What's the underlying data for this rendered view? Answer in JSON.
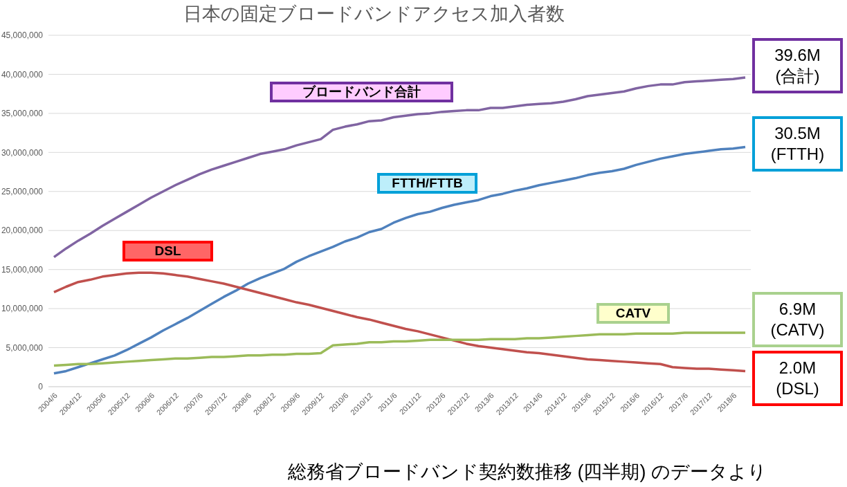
{
  "chart_data": {
    "type": "line",
    "title": "日本の固定ブロードバンドアクセス加入者数",
    "categories": [
      "2004/6",
      null,
      "2004/12",
      null,
      "2005/6",
      null,
      "2005/12",
      null,
      "2006/6",
      null,
      "2006/12",
      null,
      "2007/6",
      null,
      "2007/12",
      null,
      "2008/6",
      null,
      "2008/12",
      null,
      "2009/6",
      null,
      "2009/12",
      null,
      "2010/6",
      null,
      "2010/12",
      null,
      "2011/6",
      null,
      "2011/12",
      null,
      "2012/6",
      null,
      "2012/12",
      null,
      "2013/6",
      null,
      "2013/12",
      null,
      "2014/6",
      null,
      "2014/12",
      null,
      "2015/6",
      null,
      "2015/12",
      null,
      "2016/6",
      null,
      "2016/12",
      null,
      "2017/6",
      null,
      "2017/12",
      null,
      "2018/6",
      null
    ],
    "series": [
      {
        "name": "ブロードバンド合計",
        "color": "#8064a2",
        "values": [
          16600000,
          17700000,
          18700000,
          19600000,
          20600000,
          21500000,
          22400000,
          23300000,
          24200000,
          25000000,
          25800000,
          26500000,
          27200000,
          27800000,
          28300000,
          28800000,
          29300000,
          29800000,
          30100000,
          30400000,
          30900000,
          31300000,
          31700000,
          32900000,
          33300000,
          33600000,
          34000000,
          34100000,
          34500000,
          34700000,
          34900000,
          35000000,
          35200000,
          35300000,
          35400000,
          35400000,
          35700000,
          35700000,
          35900000,
          36100000,
          36200000,
          36300000,
          36500000,
          36800000,
          37200000,
          37400000,
          37600000,
          37800000,
          38200000,
          38500000,
          38700000,
          38700000,
          39000000,
          39100000,
          39200000,
          39300000,
          39400000,
          39600000
        ]
      },
      {
        "name": "FTTH/FTTB",
        "color": "#4f81bd",
        "values": [
          1700000,
          2000000,
          2500000,
          3000000,
          3500000,
          4000000,
          4700000,
          5500000,
          6300000,
          7200000,
          8000000,
          8800000,
          9700000,
          10600000,
          11500000,
          12300000,
          13200000,
          13900000,
          14500000,
          15100000,
          16000000,
          16700000,
          17300000,
          17900000,
          18600000,
          19100000,
          19800000,
          20200000,
          21000000,
          21600000,
          22100000,
          22400000,
          22900000,
          23300000,
          23600000,
          23900000,
          24400000,
          24700000,
          25100000,
          25400000,
          25800000,
          26100000,
          26400000,
          26700000,
          27100000,
          27400000,
          27600000,
          27900000,
          28400000,
          28800000,
          29200000,
          29500000,
          29800000,
          30000000,
          30200000,
          30400000,
          30500000,
          30700000
        ]
      },
      {
        "name": "DSL",
        "color": "#c0504d",
        "values": [
          12100000,
          12800000,
          13400000,
          13700000,
          14100000,
          14300000,
          14500000,
          14600000,
          14600000,
          14500000,
          14300000,
          14100000,
          13800000,
          13500000,
          13200000,
          12800000,
          12400000,
          12000000,
          11600000,
          11200000,
          10800000,
          10500000,
          10100000,
          9700000,
          9300000,
          8900000,
          8600000,
          8200000,
          7800000,
          7400000,
          7100000,
          6700000,
          6300000,
          5900000,
          5500000,
          5200000,
          5000000,
          4800000,
          4600000,
          4400000,
          4300000,
          4100000,
          3900000,
          3700000,
          3500000,
          3400000,
          3300000,
          3200000,
          3100000,
          3000000,
          2900000,
          2500000,
          2400000,
          2300000,
          2300000,
          2200000,
          2100000,
          2000000
        ]
      },
      {
        "name": "CATV",
        "color": "#9bbb59",
        "values": [
          2700000,
          2800000,
          2900000,
          2900000,
          3000000,
          3100000,
          3200000,
          3300000,
          3400000,
          3500000,
          3600000,
          3600000,
          3700000,
          3800000,
          3800000,
          3900000,
          4000000,
          4000000,
          4100000,
          4100000,
          4200000,
          4200000,
          4300000,
          5300000,
          5400000,
          5500000,
          5700000,
          5700000,
          5800000,
          5800000,
          5900000,
          6000000,
          6000000,
          6000000,
          6000000,
          6000000,
          6100000,
          6100000,
          6100000,
          6200000,
          6200000,
          6300000,
          6400000,
          6500000,
          6600000,
          6700000,
          6700000,
          6700000,
          6800000,
          6800000,
          6800000,
          6800000,
          6900000,
          6900000,
          6900000,
          6900000,
          6900000,
          6900000
        ]
      }
    ],
    "ylim": [
      0,
      45000000
    ],
    "yticks": [
      0,
      {
        "value": 5000000,
        "label": "5,000,000"
      },
      {
        "value": 10000000,
        "label": "10,000,000"
      },
      {
        "value": 15000000,
        "label": "15,000,000"
      },
      {
        "value": 20000000,
        "label": "20,000,000"
      },
      {
        "value": 25000000,
        "label": "25,000,000"
      },
      {
        "value": 30000000,
        "label": "30,000,000"
      },
      {
        "value": 35000000,
        "label": "35,000,000"
      },
      {
        "value": 40000000,
        "label": "40,000,000"
      },
      {
        "value": 45000000,
        "label": "45,000,000"
      }
    ],
    "grid": "y",
    "legend": false,
    "annotations": [
      "39.6M\n(合計)",
      "30.5M\n(FTTH)",
      "6.9M\n(CATV)",
      "2.0M\n(DSL)",
      "総務省ブロードバンド契約数推移 (四半期) のデータより"
    ]
  }
}
